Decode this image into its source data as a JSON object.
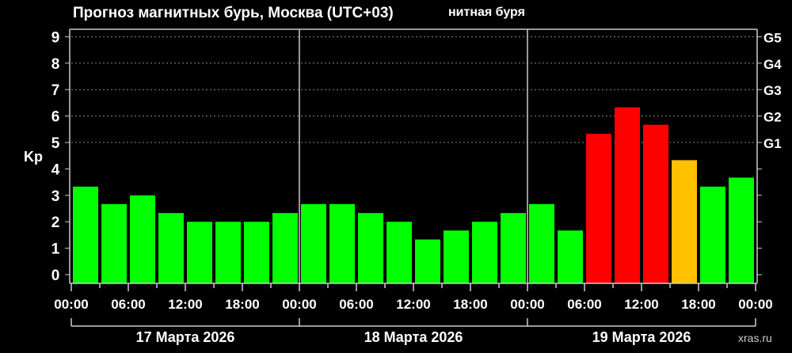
{
  "chart_data": {
    "type": "bar",
    "title": "Прогноз магнитных бурь, Москва (UTC+03)",
    "title_overlap_fragment": "нитная буря",
    "ylabel": "Kp",
    "ylim": [
      0,
      9
    ],
    "y_ticks": [
      "0",
      "1",
      "2",
      "3",
      "4",
      "5",
      "6",
      "7",
      "8",
      "9"
    ],
    "right_ticks": [
      "G1",
      "G2",
      "G3",
      "G4",
      "G5"
    ],
    "x_tick_labels": [
      "00:00",
      "06:00",
      "12:00",
      "18:00",
      "00:00",
      "06:00",
      "12:00",
      "18:00",
      "00:00",
      "06:00",
      "12:00",
      "18:00",
      "00:00"
    ],
    "days": [
      "17 Марта 2026",
      "18 Марта 2026",
      "19 Марта 2026"
    ],
    "bar_interval_hours": 3,
    "grid": "dotted lines at Kp 5–9",
    "values": [
      3.33,
      2.67,
      3.0,
      2.33,
      2.0,
      2.0,
      2.0,
      2.33,
      2.67,
      2.67,
      2.33,
      2.0,
      1.33,
      1.67,
      2.0,
      2.33,
      2.67,
      1.67,
      5.33,
      6.33,
      5.67,
      4.33,
      3.33,
      3.67
    ],
    "colors": {
      "quiet": "#00ff00",
      "elevated": "#ffc000",
      "storm": "#ff0000"
    },
    "watermark": "xras.ru"
  }
}
